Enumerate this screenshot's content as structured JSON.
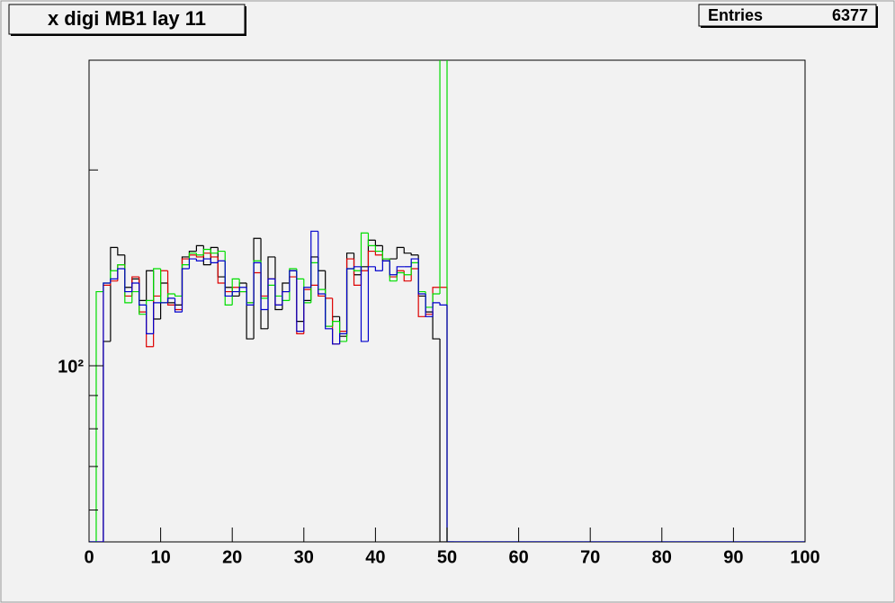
{
  "chart_data": {
    "type": "histogram",
    "title": "x digi MB1 lay 11",
    "stats": {
      "label": "Entries",
      "value": 6377
    },
    "log_y": true,
    "bins": [
      0,
      1,
      2,
      3,
      4,
      5,
      6,
      7,
      8,
      9,
      10,
      11,
      12,
      13,
      14,
      15,
      16,
      17,
      18,
      19,
      20,
      21,
      22,
      23,
      24,
      25,
      26,
      27,
      28,
      29,
      30,
      31,
      32,
      33,
      34,
      35,
      36,
      37,
      38,
      39,
      40,
      41,
      42,
      43,
      44,
      45,
      46,
      47,
      48,
      49,
      50,
      51,
      52,
      53,
      54,
      55,
      56,
      57,
      58,
      59,
      60,
      61,
      62,
      63,
      64,
      65,
      66,
      67,
      68,
      69,
      70,
      71,
      72,
      73,
      74,
      75,
      76,
      77,
      78,
      79,
      80,
      81,
      82,
      83,
      84,
      85,
      86,
      87,
      88,
      89,
      90,
      91,
      92,
      93,
      94,
      95,
      96,
      97,
      98,
      99,
      100
    ],
    "series": [
      {
        "color": "#000000",
        "values": [
          0,
          0,
          109,
          152,
          148,
          132,
          136,
          126,
          140,
          118,
          134,
          125,
          124,
          147,
          150,
          153,
          143,
          152,
          137,
          132,
          128,
          134,
          110,
          157,
          114,
          147,
          122,
          134,
          140,
          117,
          126,
          147,
          140,
          115,
          119,
          111,
          149,
          138,
          142,
          156,
          153,
          145,
          146,
          152,
          149,
          148,
          128,
          121,
          110,
          0,
          0,
          0,
          0,
          0,
          0,
          0,
          0,
          0,
          0,
          0,
          0,
          0,
          0,
          0,
          0,
          0,
          0,
          0,
          0,
          0,
          0,
          0,
          0,
          0,
          0,
          0,
          0,
          0,
          0,
          0,
          0,
          0,
          0,
          0,
          0,
          0,
          0,
          0,
          0,
          0,
          0,
          0,
          0,
          0,
          0,
          0,
          0,
          0,
          0,
          0
        ]
      },
      {
        "color": "#dd0000",
        "values": [
          0,
          0,
          133,
          135,
          143,
          128,
          137,
          121,
          107,
          128,
          140,
          124,
          122,
          146,
          148,
          147,
          149,
          147,
          134,
          130,
          132,
          130,
          125,
          139,
          128,
          136,
          124,
          130,
          137,
          112,
          131,
          133,
          128,
          127,
          108,
          113,
          146,
          133,
          140,
          150,
          148,
          146,
          137,
          140,
          135,
          141,
          119,
          120,
          132,
          132,
          0,
          0,
          0,
          0,
          0,
          0,
          0,
          0,
          0,
          0,
          0,
          0,
          0,
          0,
          0,
          0,
          0,
          0,
          0,
          0,
          0,
          0,
          0,
          0,
          0,
          0,
          0,
          0,
          0,
          0,
          0,
          0,
          0,
          0,
          0,
          0,
          0,
          0,
          0,
          0,
          0,
          0,
          0,
          0,
          0,
          0,
          0,
          0,
          0,
          0
        ]
      },
      {
        "color": "#00dd00",
        "values": [
          0,
          130,
          134,
          140,
          143,
          125,
          130,
          120,
          126,
          141,
          125,
          129,
          128,
          143,
          149,
          148,
          151,
          149,
          150,
          124,
          136,
          130,
          125,
          145,
          127,
          133,
          128,
          126,
          141,
          136,
          125,
          144,
          131,
          115,
          117,
          109,
          141,
          140,
          160,
          153,
          150,
          146,
          135,
          139,
          138,
          144,
          130,
          123,
          129,
          320,
          0,
          0,
          0,
          0,
          0,
          0,
          0,
          0,
          0,
          0,
          0,
          0,
          0,
          0,
          0,
          0,
          0,
          0,
          0,
          0,
          0,
          0,
          0,
          0,
          0,
          0,
          0,
          0,
          0,
          0,
          0,
          0,
          0,
          0,
          0,
          0,
          0,
          0,
          0,
          0,
          0,
          0,
          0,
          0,
          0,
          0,
          0,
          0,
          0,
          0
        ]
      },
      {
        "color": "#0000cc",
        "values": [
          0,
          0,
          134,
          136,
          141,
          130,
          134,
          124,
          112,
          125,
          125,
          127,
          121,
          141,
          146,
          145,
          146,
          144,
          145,
          128,
          130,
          132,
          124,
          144,
          122,
          136,
          124,
          130,
          140,
          113,
          132,
          161,
          129,
          114,
          108,
          112,
          141,
          142,
          109,
          142,
          140,
          145,
          138,
          142,
          142,
          146,
          129,
          119,
          125,
          124,
          0,
          0,
          0,
          0,
          0,
          0,
          0,
          0,
          0,
          0,
          0,
          0,
          0,
          0,
          0,
          0,
          0,
          0,
          0,
          0,
          0,
          0,
          0,
          0,
          0,
          0,
          0,
          0,
          0,
          0,
          0,
          0,
          0,
          0,
          0,
          0,
          0,
          0,
          0,
          0,
          0,
          0,
          0,
          0,
          0,
          0,
          0,
          0,
          0,
          0
        ]
      }
    ],
    "xlim": [
      0,
      100
    ],
    "xticks": [
      0,
      10,
      20,
      30,
      40,
      50,
      60,
      70,
      80,
      90,
      100
    ],
    "ylim": [
      53.6,
      295
    ],
    "yticks": [
      {
        "value": 100,
        "label": "10²"
      }
    ],
    "yminor_ticks": [
      60,
      70,
      80,
      90,
      200
    ]
  }
}
